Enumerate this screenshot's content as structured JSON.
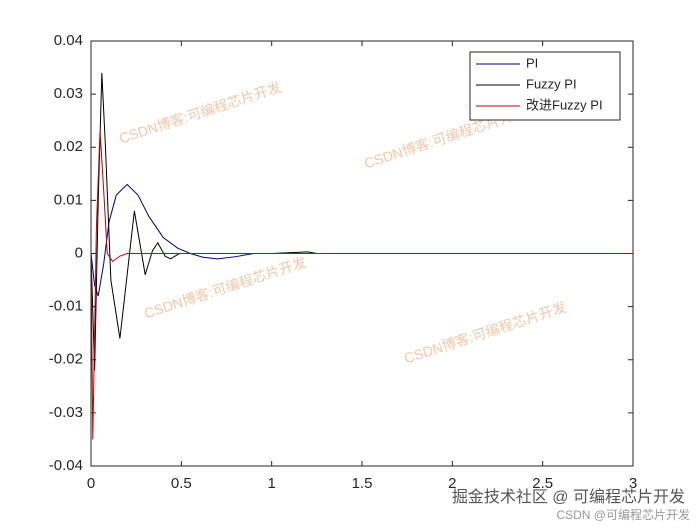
{
  "chart_data": {
    "type": "line",
    "series": [
      {
        "name": "PI",
        "color": "#000080",
        "x": [
          0,
          0.02,
          0.04,
          0.07,
          0.1,
          0.14,
          0.2,
          0.26,
          0.32,
          0.4,
          0.48,
          0.55,
          0.62,
          0.7,
          0.8,
          0.9,
          1.0,
          1.2,
          1.5,
          2.0,
          3.0
        ],
        "values": [
          0,
          -0.006,
          -0.008,
          -0.002,
          0.006,
          0.011,
          0.013,
          0.011,
          0.007,
          0.003,
          0.001,
          0,
          -0.0007,
          -0.001,
          -0.0006,
          0,
          0,
          0,
          0,
          0,
          0
        ]
      },
      {
        "name": "Fuzzy PI",
        "color": "#000000",
        "x": [
          0,
          0.02,
          0.04,
          0.06,
          0.08,
          0.11,
          0.16,
          0.2,
          0.24,
          0.27,
          0.3,
          0.34,
          0.37,
          0.41,
          0.44,
          0.49,
          0.55,
          0.7,
          1.0,
          1.2,
          1.25,
          1.3,
          2.0,
          3.0
        ],
        "values": [
          0,
          -0.022,
          0.01,
          0.034,
          0.02,
          -0.005,
          -0.016,
          -0.004,
          0.008,
          0.002,
          -0.004,
          0.0005,
          0.002,
          -0.0005,
          -0.001,
          0,
          0,
          0,
          0,
          0.0003,
          0,
          0,
          0,
          0
        ]
      },
      {
        "name": "改进Fuzzy PI",
        "color": "#c00000",
        "x": [
          0,
          0.01,
          0.03,
          0.05,
          0.07,
          0.09,
          0.12,
          0.16,
          0.2,
          0.3,
          0.5,
          1.0,
          2.0,
          3.0
        ],
        "values": [
          0,
          -0.035,
          0.005,
          0.023,
          0.012,
          0,
          -0.0015,
          -0.0005,
          0,
          0,
          0,
          0,
          0,
          0
        ]
      }
    ],
    "xlim": [
      0,
      3
    ],
    "xticks": [
      0,
      0.5,
      1,
      1.5,
      2,
      2.5,
      3
    ],
    "ylim": [
      -0.04,
      0.04
    ],
    "yticks": [
      -0.04,
      -0.03,
      -0.02,
      -0.01,
      0,
      0.01,
      0.02,
      0.03,
      0.04
    ],
    "legend": "upper right",
    "watermarks": [
      "CSDN博客:可编程芯片开发",
      "CSDN博客:可编程芯片开发",
      "CSDN博客:可编程芯片开发",
      "CSDN博客:可编程芯片开发",
      "掘金技术社区 @ 可编程芯片开发",
      "CSDN @可编程芯片开发"
    ]
  }
}
